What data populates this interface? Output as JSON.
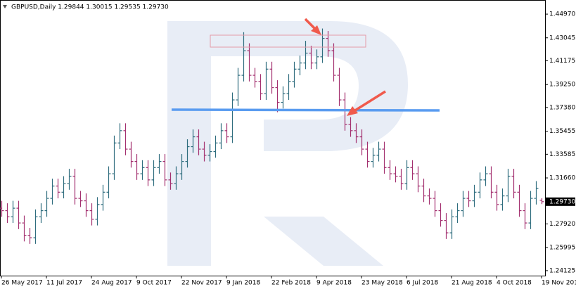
{
  "chart_data": {
    "type": "ohlc",
    "title": "GBPUSD,Daily  1.29844 1.30015 1.29535 1.29730",
    "categories": [
      "26 May 2017",
      null,
      null,
      null,
      null,
      null,
      null,
      null,
      "11 Jul 2017",
      null,
      null,
      null,
      null,
      null,
      null,
      null,
      "24 Aug 2017",
      null,
      null,
      null,
      null,
      null,
      null,
      null,
      "9 Oct 2017",
      null,
      null,
      null,
      null,
      null,
      null,
      null,
      "22 Nov 2017",
      null,
      null,
      null,
      null,
      null,
      null,
      null,
      "9 Jan 2018",
      null,
      null,
      null,
      null,
      null,
      null,
      null,
      "22 Feb 2018",
      null,
      null,
      null,
      null,
      null,
      null,
      null,
      "9 Apr 2018",
      null,
      null,
      null,
      null,
      null,
      null,
      null,
      "23 May 2018",
      null,
      null,
      null,
      null,
      null,
      null,
      null,
      "6 Jul 2018",
      null,
      null,
      null,
      null,
      null,
      null,
      null,
      "21 Aug 2018",
      null,
      null,
      null,
      null,
      null,
      null,
      null,
      "4 Oct 2018",
      null,
      null,
      null,
      null,
      null,
      null,
      null,
      "19 Nov 201"
    ],
    "open": [
      1.292,
      1.29,
      1.285,
      1.292,
      1.28,
      1.27,
      1.268,
      1.285,
      1.29,
      1.3,
      1.31,
      1.305,
      1.312,
      1.318,
      1.3,
      1.298,
      1.29,
      1.283,
      1.295,
      1.305,
      1.32,
      1.345,
      1.355,
      1.34,
      1.33,
      1.32,
      1.325,
      1.315,
      1.325,
      1.33,
      1.315,
      1.312,
      1.32,
      1.33,
      1.342,
      1.35,
      1.34,
      1.335,
      1.338,
      1.345,
      1.355,
      1.35,
      1.38,
      1.4,
      1.42,
      1.4,
      1.395,
      1.385,
      1.405,
      1.39,
      1.378,
      1.385,
      1.395,
      1.405,
      1.41,
      1.418,
      1.41,
      1.415,
      1.43,
      1.42,
      1.4,
      1.38,
      1.36,
      1.355,
      1.35,
      1.34,
      1.33,
      1.335,
      1.34,
      1.325,
      1.32,
      1.318,
      1.312,
      1.325,
      1.32,
      1.31,
      1.302,
      1.3,
      1.29,
      1.282,
      1.272,
      1.285,
      1.29,
      1.3,
      1.298,
      1.305,
      1.315,
      1.32,
      1.305,
      1.295,
      1.302,
      1.318,
      1.305,
      1.29,
      1.28,
      1.3,
      1.29844
    ],
    "high": [
      1.298,
      1.296,
      1.298,
      1.298,
      1.286,
      1.276,
      1.291,
      1.296,
      1.306,
      1.316,
      1.316,
      1.318,
      1.324,
      1.324,
      1.306,
      1.304,
      1.296,
      1.301,
      1.311,
      1.326,
      1.351,
      1.361,
      1.361,
      1.346,
      1.336,
      1.331,
      1.331,
      1.331,
      1.336,
      1.336,
      1.321,
      1.326,
      1.336,
      1.348,
      1.356,
      1.356,
      1.346,
      1.344,
      1.351,
      1.361,
      1.361,
      1.386,
      1.406,
      1.435,
      1.426,
      1.406,
      1.401,
      1.411,
      1.411,
      1.396,
      1.391,
      1.401,
      1.411,
      1.416,
      1.428,
      1.424,
      1.421,
      1.438,
      1.436,
      1.426,
      1.406,
      1.386,
      1.366,
      1.361,
      1.356,
      1.346,
      1.341,
      1.346,
      1.346,
      1.331,
      1.326,
      1.324,
      1.331,
      1.331,
      1.326,
      1.316,
      1.308,
      1.306,
      1.296,
      1.288,
      1.291,
      1.296,
      1.306,
      1.306,
      1.311,
      1.321,
      1.326,
      1.326,
      1.311,
      1.308,
      1.324,
      1.324,
      1.311,
      1.296,
      1.306,
      1.314,
      1.30015
    ],
    "low": [
      1.285,
      1.28,
      1.28,
      1.275,
      1.265,
      1.263,
      1.263,
      1.28,
      1.285,
      1.295,
      1.3,
      1.3,
      1.307,
      1.295,
      1.293,
      1.285,
      1.278,
      1.278,
      1.29,
      1.3,
      1.315,
      1.34,
      1.335,
      1.325,
      1.315,
      1.315,
      1.31,
      1.31,
      1.32,
      1.31,
      1.307,
      1.307,
      1.315,
      1.325,
      1.337,
      1.335,
      1.33,
      1.33,
      1.333,
      1.34,
      1.345,
      1.345,
      1.375,
      1.395,
      1.395,
      1.39,
      1.38,
      1.38,
      1.385,
      1.37,
      1.373,
      1.38,
      1.39,
      1.4,
      1.405,
      1.405,
      1.405,
      1.41,
      1.415,
      1.395,
      1.375,
      1.355,
      1.35,
      1.345,
      1.335,
      1.325,
      1.325,
      1.33,
      1.32,
      1.315,
      1.313,
      1.307,
      1.307,
      1.315,
      1.305,
      1.297,
      1.295,
      1.285,
      1.277,
      1.267,
      1.267,
      1.28,
      1.285,
      1.293,
      1.293,
      1.3,
      1.31,
      1.3,
      1.29,
      1.29,
      1.297,
      1.3,
      1.285,
      1.275,
      1.275,
      1.295,
      1.29535
    ],
    "close": [
      1.29,
      1.285,
      1.292,
      1.28,
      1.27,
      1.268,
      1.285,
      1.29,
      1.3,
      1.31,
      1.305,
      1.312,
      1.318,
      1.3,
      1.298,
      1.29,
      1.283,
      1.295,
      1.305,
      1.32,
      1.345,
      1.355,
      1.34,
      1.33,
      1.32,
      1.325,
      1.315,
      1.325,
      1.33,
      1.315,
      1.312,
      1.32,
      1.33,
      1.342,
      1.35,
      1.34,
      1.335,
      1.338,
      1.345,
      1.355,
      1.35,
      1.38,
      1.4,
      1.42,
      1.4,
      1.395,
      1.385,
      1.405,
      1.39,
      1.378,
      1.385,
      1.395,
      1.405,
      1.41,
      1.418,
      1.41,
      1.415,
      1.43,
      1.42,
      1.4,
      1.38,
      1.36,
      1.355,
      1.35,
      1.34,
      1.33,
      1.335,
      1.34,
      1.325,
      1.32,
      1.318,
      1.312,
      1.325,
      1.32,
      1.31,
      1.302,
      1.3,
      1.29,
      1.282,
      1.272,
      1.285,
      1.29,
      1.3,
      1.298,
      1.305,
      1.315,
      1.32,
      1.305,
      1.295,
      1.302,
      1.318,
      1.305,
      1.29,
      1.28,
      1.3,
      1.308,
      1.2973
    ],
    "up_color": "#2f6d7e",
    "down_color": "#a3306f",
    "ylim": [
      1.2372,
      1.4606
    ],
    "yticks": [
      {
        "value": 1.4497,
        "label": "1.44970"
      },
      {
        "value": 1.43045,
        "label": "1.43045"
      },
      {
        "value": 1.41175,
        "label": "1.41175"
      },
      {
        "value": 1.3925,
        "label": "1.39250"
      },
      {
        "value": 1.3738,
        "label": "1.37380"
      },
      {
        "value": 1.35455,
        "label": "1.35455"
      },
      {
        "value": 1.33585,
        "label": "1.33585"
      },
      {
        "value": 1.3166,
        "label": "1.31660"
      },
      {
        "value": 1.2792,
        "label": "1.27920"
      },
      {
        "value": 1.25995,
        "label": "1.25995"
      },
      {
        "value": 1.24125,
        "label": "1.24125"
      }
    ],
    "last_price": {
      "value": 1.2973,
      "label": "1.29730"
    },
    "grid": false
  }
}
